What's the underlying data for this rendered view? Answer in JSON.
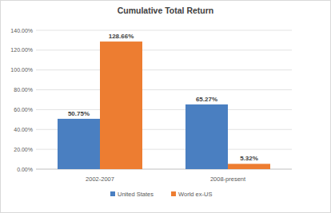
{
  "chart_data": {
    "type": "bar",
    "title": "Cumulative Total Return",
    "categories": [
      "2002-2007",
      "2008-present"
    ],
    "series": [
      {
        "name": "United States",
        "color": "#4a7fc1",
        "values": [
          50.75,
          65.27
        ],
        "value_labels": [
          "50.75%",
          "65.27%"
        ]
      },
      {
        "name": "World ex-US",
        "color": "#ed7d31",
        "values": [
          128.66,
          5.32
        ],
        "value_labels": [
          "128.66%",
          "5.32%"
        ]
      }
    ],
    "ylim": [
      0,
      140
    ],
    "yticks": [
      {
        "value": 0,
        "label": "0.00%"
      },
      {
        "value": 20,
        "label": "20.00%"
      },
      {
        "value": 40,
        "label": "40.00%"
      },
      {
        "value": 60,
        "label": "60.00%"
      },
      {
        "value": 80,
        "label": "80.00%"
      },
      {
        "value": 100,
        "label": "100.00%"
      },
      {
        "value": 120,
        "label": "120.00%"
      },
      {
        "value": 140,
        "label": "140.00%"
      }
    ],
    "grid": true,
    "legend": "bottom",
    "data_labels": true
  }
}
